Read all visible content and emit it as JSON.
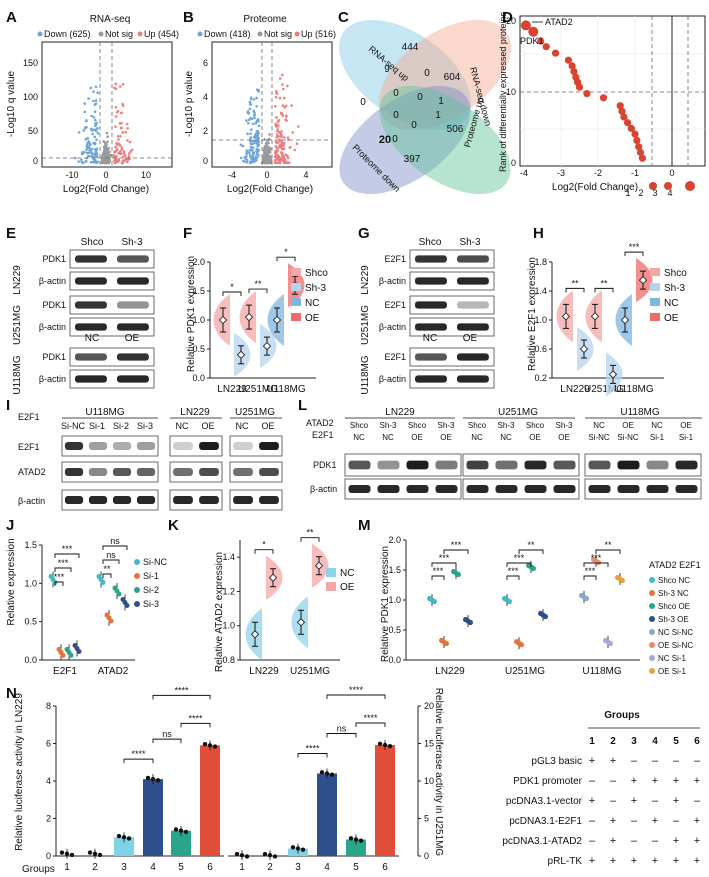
{
  "panel_labels": {
    "A": "A",
    "B": "B",
    "C": "C",
    "D": "D",
    "E": "E",
    "F": "F",
    "G": "G",
    "H": "H",
    "I": "I",
    "J": "J",
    "K": "K",
    "L": "L",
    "M": "M",
    "N": "N"
  },
  "colors": {
    "down": "#6ea6d8",
    "notsig": "#9a9a9a",
    "up": "#ef7d7d",
    "red": "#d9432f",
    "blue": "#7fb6e0",
    "pinkred": "#ef6a6a",
    "teal": "#47b7c6",
    "navy": "#2f4e8c",
    "green": "#2aa58a",
    "orange": "#e8a13a",
    "lav": "#a9a7d6",
    "salmon": "#f08a6c"
  },
  "volcano_a": {
    "title": "RNA-seq",
    "legend_down": "Down (625)",
    "legend_notsig": "Not sig",
    "legend_up": "Up (454)",
    "ylabel": "-Log10 q value",
    "xlabel": "Log2(Fold Change)",
    "xticks": [
      "-10",
      "0",
      "10"
    ],
    "yticks": [
      "0",
      "50",
      "100",
      "150"
    ]
  },
  "volcano_b": {
    "title": "Proteome",
    "legend_down": "Down (418)",
    "legend_notsig": "Not sig",
    "legend_up": "Up (516)",
    "ylabel": "-Log10 p value",
    "xlabel": "Log2(Fold Change)",
    "xticks": [
      "-4",
      "0",
      "4"
    ],
    "yticks": [
      "0",
      "2",
      "4",
      "6"
    ]
  },
  "venn": {
    "labels": [
      "RNA-seq up",
      "RNA-seq down",
      "Proteome up",
      "Proteome down"
    ],
    "numbers": [
      "444",
      "604",
      "506",
      "397",
      "9",
      "0",
      "0",
      "0",
      "0",
      "1",
      "0",
      "1",
      "0",
      "0",
      "20"
    ]
  },
  "rank_d": {
    "ylabel": "Rank of differentially expressed proteins",
    "xlabel": "Log2(Fold Change)",
    "xticks": [
      "-4",
      "-3",
      "-2",
      "-1",
      "0"
    ],
    "yticks": [
      "0",
      "10",
      "20"
    ],
    "ann1": "ATAD2",
    "ann2": "PDK1",
    "bottom_ticks": [
      "1",
      "2",
      "3",
      "4"
    ],
    "points": [
      [
        -3.95,
        19.8
      ],
      [
        -3.75,
        18.9
      ],
      [
        -3.55,
        17.6
      ],
      [
        -3.4,
        16.8
      ],
      [
        -3.15,
        15.9
      ],
      [
        -2.8,
        14.9
      ],
      [
        -2.7,
        14.1
      ],
      [
        -2.65,
        13.3
      ],
      [
        -2.6,
        12.5
      ],
      [
        -2.55,
        11.8
      ],
      [
        -2.5,
        11.1
      ],
      [
        -2.3,
        10.2
      ],
      [
        -1.85,
        9.6
      ],
      [
        -1.4,
        8.5
      ],
      [
        -1.35,
        7.7
      ],
      [
        -1.3,
        6.9
      ],
      [
        -1.2,
        6.1
      ],
      [
        -1.1,
        5.3
      ],
      [
        -1.0,
        4.5
      ],
      [
        -0.95,
        3.6
      ],
      [
        -0.9,
        2.7
      ],
      [
        -0.85,
        1.9
      ],
      [
        -0.8,
        1.1
      ]
    ]
  },
  "blot_e": {
    "cols": [
      "Shco",
      "Sh-3"
    ],
    "cols2": [
      "NC",
      "OE"
    ],
    "rows": [
      "PDK1",
      "β-actin",
      "PDK1",
      "β-actin",
      "PDK1",
      "β-actin"
    ],
    "cells": [
      "LN229",
      "U251MG",
      "U118MG"
    ]
  },
  "blot_g": {
    "cols": [
      "Shco",
      "Sh-3"
    ],
    "cols2": [
      "NC",
      "OE"
    ],
    "rows": [
      "E2F1",
      "β-actin",
      "E2F1",
      "β-actin",
      "E2F1",
      "β-actin"
    ],
    "cells": [
      "LN229",
      "U251MG",
      "U118MG"
    ]
  },
  "chart_data": [
    {
      "panel": "F",
      "type": "violin",
      "ylabel": "Relative PDK1 expression",
      "ylim": [
        0,
        2.0
      ],
      "yticks": [
        "0.0",
        "0.5",
        "1.0",
        "1.5",
        "2.0"
      ],
      "categories": [
        "LN229",
        "U251MG",
        "U118MG"
      ],
      "series": [
        {
          "name": "Shco",
          "values": [
            1.0,
            1.05,
            null
          ]
        },
        {
          "name": "Sh-3",
          "values": [
            0.4,
            0.55,
            null
          ]
        },
        {
          "name": "NC",
          "values": [
            null,
            null,
            1.0
          ]
        },
        {
          "name": "OE",
          "values": [
            null,
            null,
            1.6
          ]
        }
      ],
      "sig": [
        "*",
        "**",
        "*"
      ]
    },
    {
      "panel": "H",
      "type": "violin",
      "ylabel": "Relative E2F1 expression",
      "ylim": [
        0.2,
        1.8
      ],
      "yticks": [
        "0.2",
        "0.6",
        "1.0",
        "1.4",
        "1.8"
      ],
      "categories": [
        "LN229",
        "U251MG",
        "U118MG"
      ],
      "series": [
        {
          "name": "Shco",
          "values": [
            1.05,
            1.05,
            null
          ]
        },
        {
          "name": "Sh-3",
          "values": [
            0.6,
            0.25,
            null
          ]
        },
        {
          "name": "NC",
          "values": [
            null,
            null,
            1.0
          ]
        },
        {
          "name": "OE",
          "values": [
            null,
            null,
            1.55
          ]
        }
      ],
      "sig": [
        "**",
        "**",
        "***"
      ]
    },
    {
      "panel": "J",
      "type": "scatter",
      "ylabel": "Relative expression",
      "ylim": [
        0,
        1.5
      ],
      "yticks": [
        "0.0",
        "0.5",
        "1.0",
        "1.5"
      ],
      "categories": [
        "E2F1",
        "ATAD2"
      ],
      "series": [
        {
          "name": "Si-NC",
          "values": [
            1.05,
            1.05
          ]
        },
        {
          "name": "Si-1",
          "values": [
            0.1,
            0.55
          ]
        },
        {
          "name": "Si-2",
          "values": [
            0.1,
            0.9
          ]
        },
        {
          "name": "Si-3",
          "values": [
            0.15,
            0.75
          ]
        }
      ],
      "sig": [
        "***",
        "***",
        "***",
        "**",
        "ns",
        "ns"
      ]
    },
    {
      "panel": "K",
      "type": "violin",
      "ylabel": "Relative ATAD2 expression",
      "ylim": [
        0.8,
        1.5
      ],
      "yticks": [
        "0.8",
        "1.0",
        "1.2",
        "1.4"
      ],
      "categories": [
        "LN229",
        "U251MG"
      ],
      "series": [
        {
          "name": "NC",
          "values": [
            0.95,
            1.02
          ]
        },
        {
          "name": "OE",
          "values": [
            1.28,
            1.35
          ]
        }
      ],
      "sig": [
        "*",
        "**"
      ]
    },
    {
      "panel": "M",
      "type": "scatter",
      "ylabel": "Relative PDK1 expression",
      "ylim": [
        0,
        2.0
      ],
      "yticks": [
        "0.0",
        "0.5",
        "1.0",
        "1.5",
        "2.0"
      ],
      "categories": [
        "LN229",
        "U251MG",
        "U118MG"
      ],
      "series": [
        {
          "name": "Shco NC",
          "values": [
            1.0,
            1.0,
            null
          ]
        },
        {
          "name": "Sh-3 NC",
          "values": [
            0.3,
            0.28,
            null
          ]
        },
        {
          "name": "Shco OE",
          "values": [
            1.45,
            1.55,
            null
          ]
        },
        {
          "name": "Sh-3 OE",
          "values": [
            0.65,
            0.75,
            null
          ]
        },
        {
          "name": "NC Si-NC",
          "values": [
            null,
            null,
            1.05
          ]
        },
        {
          "name": "OE Si-NC",
          "values": [
            null,
            null,
            1.65
          ]
        },
        {
          "name": "NC Si-1",
          "values": [
            null,
            null,
            0.3
          ]
        },
        {
          "name": "OE Si-1",
          "values": [
            null,
            null,
            1.35
          ]
        }
      ],
      "sig": [
        "***",
        "***",
        "***",
        "***",
        "***",
        "**",
        "***",
        "***",
        "**"
      ]
    },
    {
      "panel": "N-left",
      "type": "bar",
      "ylabel": "Relative luciferase activity in LN229",
      "ylim": [
        0,
        8
      ],
      "yticks": [
        "0",
        "2",
        "4",
        "6",
        "8"
      ],
      "categories": [
        "1",
        "2",
        "3",
        "4",
        "5",
        "6"
      ],
      "values": [
        0.12,
        0.12,
        1.0,
        4.1,
        1.35,
        5.9
      ],
      "sig": [
        "****",
        "ns",
        "****",
        "****"
      ],
      "xlabel": "Groups"
    },
    {
      "panel": "N-right",
      "type": "bar",
      "ylabel": "Relative luciferase activity in U251MG",
      "ylim": [
        0,
        20
      ],
      "yticks": [
        "0",
        "5",
        "10",
        "15",
        "20"
      ],
      "categories": [
        "1",
        "2",
        "3",
        "4",
        "5",
        "6"
      ],
      "values": [
        0.1,
        0.1,
        1.0,
        11.0,
        2.2,
        14.8
      ],
      "sig": [
        "****",
        "ns",
        "****",
        "****"
      ]
    }
  ],
  "legend_f": [
    "Shco",
    "Sh-3",
    "NC",
    "OE"
  ],
  "legend_h": [
    "Shco",
    "Sh-3",
    "NC",
    "OE"
  ],
  "legend_j": [
    "Si-NC",
    "Si-1",
    "Si-2",
    "Si-3"
  ],
  "legend_k": [
    "NC",
    "OE"
  ],
  "legend_m": {
    "header": "ATAD2 E2F1",
    "items": [
      "Shco  NC",
      "Sh-3  NC",
      "Shco  OE",
      "Sh-3  OE",
      "NC    Si-NC",
      "OE    Si-NC",
      "NC    Si-1",
      "OE    Si-1"
    ]
  },
  "blot_i": {
    "gene": "E2F1",
    "cells": [
      "U118MG",
      "LN229",
      "U251MG"
    ],
    "cols": [
      "Si-NC",
      "Si-1",
      "Si-2",
      "Si-3"
    ],
    "cols2": [
      "NC",
      "OE"
    ],
    "cols3": [
      "NC",
      "OE"
    ],
    "rows": [
      "E2F1",
      "ATAD2",
      "β-actin"
    ]
  },
  "blot_l": {
    "r1": "ATAD2",
    "r2": "E2F1",
    "cells": [
      "LN229",
      "U251MG",
      "U118MG"
    ],
    "top": [
      "Shco",
      "Sh-3",
      "Shco",
      "Sh-3",
      "Shco",
      "Sh-3",
      "Shco",
      "Sh-3",
      "NC",
      "OE",
      "NC",
      "OE"
    ],
    "bot": [
      "NC",
      "NC",
      "OE",
      "OE",
      "NC",
      "NC",
      "OE",
      "OE",
      "Si-NC",
      "Si-NC",
      "Si-1",
      "Si-1"
    ],
    "rows": [
      "PDK1",
      "β-actin"
    ]
  },
  "groups_table": {
    "title": "Groups",
    "cols": [
      "1",
      "2",
      "3",
      "4",
      "5",
      "6"
    ],
    "rows": [
      {
        "label": "pGL3 basic",
        "v": [
          "+",
          "+",
          "–",
          "–",
          "–",
          "–"
        ]
      },
      {
        "label": "PDK1 promoter",
        "v": [
          "–",
          "–",
          "+",
          "+",
          "+",
          "+"
        ]
      },
      {
        "label": "pcDNA3.1-vector",
        "v": [
          "+",
          "–",
          "+",
          "–",
          "+",
          "–"
        ]
      },
      {
        "label": "pcDNA3.1-E2F1",
        "v": [
          "–",
          "+",
          "–",
          "+",
          "–",
          "+"
        ]
      },
      {
        "label": "pcDNA3.1-ATAD2",
        "v": [
          "–",
          "+",
          "–",
          "–",
          "+",
          "+"
        ]
      },
      {
        "label": "pRL-TK",
        "v": [
          "+",
          "+",
          "+",
          "+",
          "+",
          "+"
        ]
      }
    ]
  },
  "groups_axis_label": "Groups"
}
